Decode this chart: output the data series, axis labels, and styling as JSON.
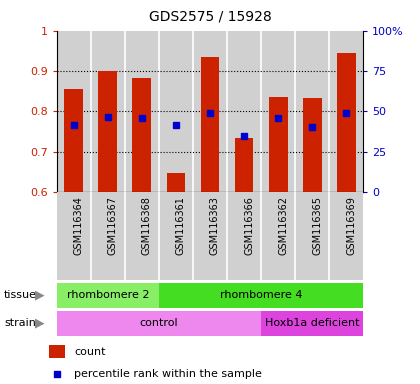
{
  "title": "GDS2575 / 15928",
  "samples": [
    "GSM116364",
    "GSM116367",
    "GSM116368",
    "GSM116361",
    "GSM116363",
    "GSM116366",
    "GSM116362",
    "GSM116365",
    "GSM116369"
  ],
  "count_values": [
    0.856,
    0.9,
    0.883,
    0.648,
    0.935,
    0.735,
    0.835,
    0.832,
    0.945
  ],
  "percentile_values": [
    0.765,
    0.785,
    0.783,
    0.765,
    0.797,
    0.74,
    0.783,
    0.762,
    0.797
  ],
  "ylim_left": [
    0.6,
    1.0
  ],
  "yticks_left": [
    0.6,
    0.7,
    0.8,
    0.9,
    1.0
  ],
  "ytick_left_labels": [
    "0.6",
    "0.7",
    "0.8",
    "0.9",
    "1"
  ],
  "yticks_right": [
    0,
    25,
    50,
    75,
    100
  ],
  "ytick_right_labels": [
    "0",
    "25",
    "50",
    "75",
    "100%"
  ],
  "bar_color": "#cc2200",
  "percentile_color": "#0000cc",
  "col_bg_color": "#d0d0d0",
  "tissue_groups": [
    {
      "label": "rhombomere 2",
      "start": 0,
      "end": 3,
      "color": "#88ee66"
    },
    {
      "label": "rhombomere 4",
      "start": 3,
      "end": 9,
      "color": "#44dd22"
    }
  ],
  "strain_groups": [
    {
      "label": "control",
      "start": 0,
      "end": 6,
      "color": "#ee88ee"
    },
    {
      "label": "Hoxb1a deficient",
      "start": 6,
      "end": 9,
      "color": "#dd44dd"
    }
  ],
  "tick_label_color_left": "#cc2200",
  "tick_label_color_right": "#0000cc",
  "title_fontsize": 10,
  "tick_fontsize": 8,
  "xtick_fontsize": 7,
  "annotation_fontsize": 8,
  "legend_fontsize": 8
}
